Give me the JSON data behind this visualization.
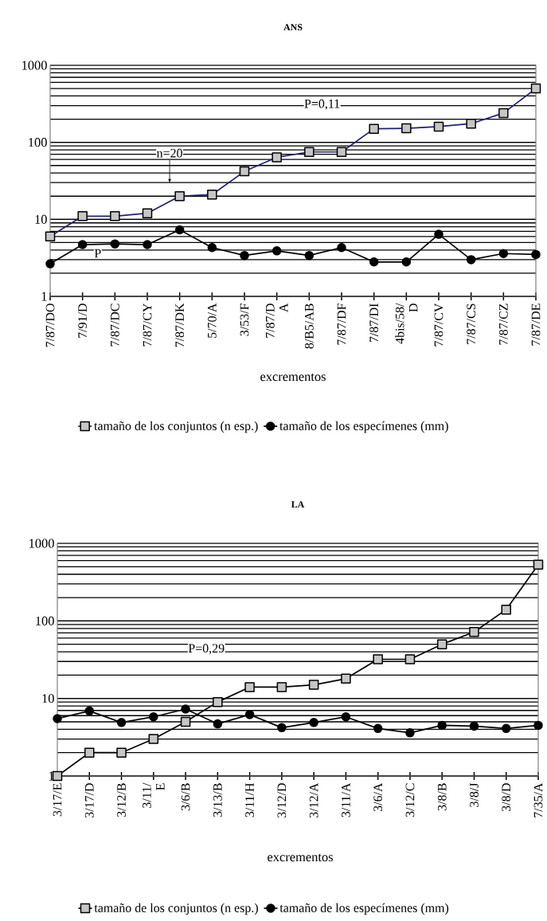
{
  "chart_data": [
    {
      "type": "line",
      "title": "ANS",
      "xlabel": "excrementos",
      "log": "y",
      "ylim": [
        1,
        1000
      ],
      "yticks": [
        1,
        10,
        100,
        1000
      ],
      "grid": "y",
      "legend": "bottom",
      "categories": [
        "7/87/DO",
        "7/91/D",
        "7/87/DC",
        "7/87/CY",
        "7/87/DK",
        "5/70/A",
        "3/53/F",
        "7/87/D A",
        "8/B5/AB",
        "7/87/DF",
        "7/87/DI",
        "4bis/58/ D",
        "7/87/CV",
        "7/87/CS",
        "7/87/CZ",
        "7/87/DE"
      ],
      "series": [
        {
          "name": "tamaño de los conjuntos (n esp.)",
          "color": "#1f1f7a",
          "marker": "square",
          "values": [
            6,
            11,
            11,
            12,
            20,
            21,
            42,
            64,
            75,
            75,
            150,
            152,
            160,
            175,
            240,
            500
          ]
        },
        {
          "name": "tamaño de los especímenes (mm)",
          "color": "#000000",
          "marker": "circle",
          "values": [
            2.65,
            4.7,
            4.8,
            4.7,
            7.3,
            4.3,
            3.4,
            3.9,
            3.4,
            4.3,
            2.8,
            2.8,
            6.4,
            3.0,
            3.6,
            3.5
          ]
        }
      ],
      "annotations": [
        "P=0,11",
        "n=20",
        "P"
      ]
    },
    {
      "type": "line",
      "title": "LA",
      "xlabel": "excrementos",
      "log": "y",
      "ylim": [
        1,
        1000
      ],
      "yticks": [
        1,
        10,
        100,
        1000
      ],
      "grid": "y",
      "legend": "bottom",
      "categories": [
        "3/17/E",
        "3/17/D",
        "3/12/B",
        "3/11/ E",
        "3/6/B",
        "3/13/B",
        "3/11/H",
        "3/12/D",
        "3/12/A",
        "3/11/A",
        "3/6/A",
        "3/12/C",
        "3/8/B",
        "3/8/J",
        "3/8/D",
        "7/35/A"
      ],
      "series": [
        {
          "name": "tamaño de los conjuntos (n esp.)",
          "color": "#000000",
          "marker": "square",
          "values": [
            1,
            2,
            2,
            3,
            5,
            9,
            14,
            14,
            15,
            18,
            32,
            32,
            50,
            72,
            140,
            530
          ]
        },
        {
          "name": "tamaño de los especímenes (mm)",
          "color": "#000000",
          "marker": "circle",
          "values": [
            5.5,
            6.9,
            4.9,
            5.8,
            7.3,
            4.7,
            6.2,
            4.2,
            4.9,
            5.8,
            4.1,
            3.6,
            4.5,
            4.4,
            4.1,
            4.5
          ]
        }
      ],
      "annotations": [
        "P=0,29"
      ]
    }
  ]
}
